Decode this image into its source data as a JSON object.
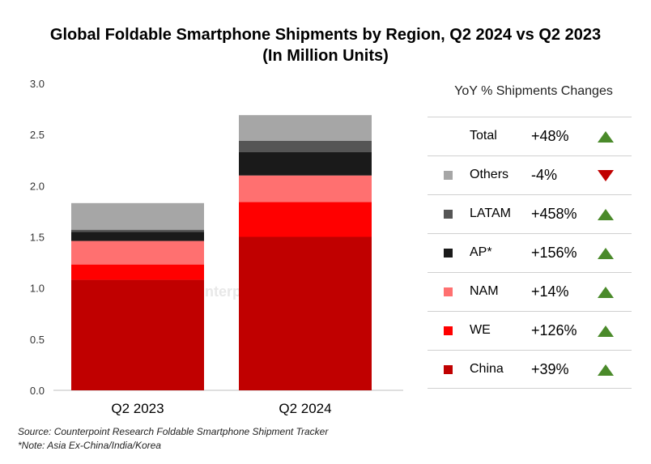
{
  "chart_data": {
    "type": "bar",
    "stacked": true,
    "title": "Global Foldable Smartphone Shipments by Region, Q2 2024 vs Q2 2023",
    "subtitle": "(In Million Units)",
    "xlabel": "",
    "ylabel": "",
    "ylim": [
      0,
      3.0
    ],
    "yticks": [
      "0.0",
      "0.5",
      "1.0",
      "1.5",
      "2.0",
      "2.5",
      "3.0"
    ],
    "ytick_values": [
      0,
      0.5,
      1.0,
      1.5,
      2.0,
      2.5,
      3.0
    ],
    "categories": [
      "Q2 2023",
      "Q2 2024"
    ],
    "series": [
      {
        "name": "China",
        "color": "#c00000",
        "values": [
          1.08,
          1.5
        ]
      },
      {
        "name": "WE",
        "color": "#ff0000",
        "values": [
          0.15,
          0.34
        ]
      },
      {
        "name": "NAM",
        "color": "#ff7070",
        "values": [
          0.23,
          0.26
        ]
      },
      {
        "name": "AP*",
        "color": "#1a1a1a",
        "values": [
          0.09,
          0.23
        ]
      },
      {
        "name": "LATAM",
        "color": "#555555",
        "values": [
          0.02,
          0.11
        ]
      },
      {
        "name": "Others",
        "color": "#a6a6a6",
        "values": [
          0.26,
          0.25
        ]
      }
    ]
  },
  "yoy": {
    "header": "YoY % Shipments Changes",
    "rows": [
      {
        "region": "Total",
        "change": "+48%",
        "direction": "up",
        "color": ""
      },
      {
        "region": "Others",
        "change": "-4%",
        "direction": "down",
        "color": "#a6a6a6"
      },
      {
        "region": "LATAM",
        "change": "+458%",
        "direction": "up",
        "color": "#555555"
      },
      {
        "region": "AP*",
        "change": "+156%",
        "direction": "up",
        "color": "#1a1a1a"
      },
      {
        "region": "NAM",
        "change": "+14%",
        "direction": "up",
        "color": "#ff7070"
      },
      {
        "region": "WE",
        "change": "+126%",
        "direction": "up",
        "color": "#ff0000"
      },
      {
        "region": "China",
        "change": "+39%",
        "direction": "up",
        "color": "#c00000"
      }
    ]
  },
  "watermark": "Counterpoint",
  "footnotes": {
    "source": "Source: Counterpoint Research Foldable Smartphone Shipment Tracker",
    "note": "*Note: Asia Ex-China/India/Korea"
  }
}
